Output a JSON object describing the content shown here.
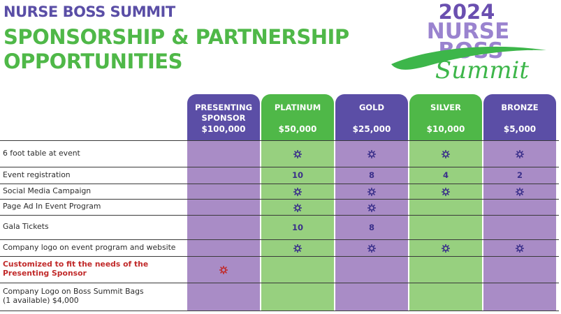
{
  "header": {
    "event_name": "NURSE BOSS SUMMIT",
    "title_line1": "SPONSORSHIP & PARTNERSHIP",
    "title_line2": "OPPORTUNITIES"
  },
  "logo": {
    "year": "2024",
    "line1": "NURSE",
    "line2": "BOSS",
    "script": "Summit",
    "colors": {
      "purple": "#6a4fb0",
      "green": "#3db64a"
    }
  },
  "colors": {
    "purple_header": "#5b4ea6",
    "green_header": "#4fb848",
    "purple_cell": "#a98cc6",
    "green_cell": "#97d07f",
    "star_blue": "#3a2f8a",
    "star_red": "#c12a2a"
  },
  "tiers": [
    {
      "name_line1": "PRESENTING",
      "name_line2": "SPONSOR",
      "price": "$100,000",
      "theme": "purple"
    },
    {
      "name_line1": "PLATINUM",
      "name_line2": "",
      "price": "$50,000",
      "theme": "green"
    },
    {
      "name_line1": "GOLD",
      "name_line2": "",
      "price": "$25,000",
      "theme": "purple"
    },
    {
      "name_line1": "SILVER",
      "name_line2": "",
      "price": "$10,000",
      "theme": "green"
    },
    {
      "name_line1": "BRONZE",
      "name_line2": "",
      "price": "$5,000",
      "theme": "purple"
    }
  ],
  "rows": [
    {
      "label_line1": "6 foot table at event",
      "label_line2": "",
      "highlight": false,
      "cells": [
        "",
        "star",
        "star",
        "star",
        "star"
      ]
    },
    {
      "label_line1": "Event registration",
      "label_line2": "",
      "highlight": false,
      "cells": [
        "",
        "10",
        "8",
        "4",
        "2"
      ]
    },
    {
      "label_line1": "Social Media Campaign",
      "label_line2": "",
      "highlight": false,
      "cells": [
        "",
        "star",
        "star",
        "star",
        "star"
      ]
    },
    {
      "label_line1": "Page Ad In Event Program",
      "label_line2": "",
      "highlight": false,
      "cells": [
        "",
        "star",
        "star",
        "",
        ""
      ]
    },
    {
      "label_line1": "Gala Tickets",
      "label_line2": "",
      "highlight": false,
      "cells": [
        "",
        "10",
        "8",
        "",
        ""
      ]
    },
    {
      "label_line1": "Company logo on event program and website",
      "label_line2": "",
      "highlight": false,
      "cells": [
        "",
        "star",
        "star",
        "star",
        "star"
      ]
    },
    {
      "label_line1": "Customized to fit the needs of the",
      "label_line2": "Presenting Sponsor",
      "highlight": true,
      "cells": [
        "star-red",
        "",
        "",
        "",
        ""
      ]
    },
    {
      "label_line1": "Company Logo on Boss Summit Bags",
      "label_line2": "(1 available)  $4,000",
      "highlight": false,
      "cells": [
        "",
        "",
        "",
        "",
        ""
      ]
    }
  ]
}
